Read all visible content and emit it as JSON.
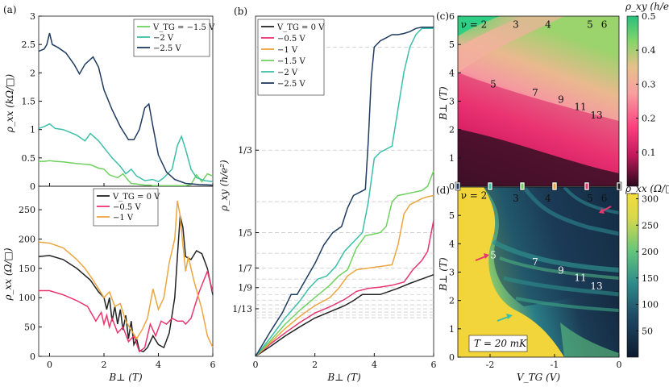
{
  "colors": {
    "vtg_m1_5": "#6fd160",
    "vtg_m2": "#3cbfa8",
    "vtg_m2_5": "#1f3b5f",
    "vtg_0": "#232323",
    "vtg_m0_5": "#e8366f",
    "vtg_m1": "#eba640"
  },
  "panels": {
    "a_label": "(a)",
    "b_label": "(b)",
    "c_label": "(c)",
    "d_label": "(d)",
    "a_top_ylabel": "ρ_xx (kΩ/□)",
    "a_bottom_ylabel": "ρ_xx (Ω/□)",
    "a_xlabel": "B⊥ (T)",
    "b_ylabel": "ρ_xy (h/e²)",
    "b_xlabel": "B⊥ (T)",
    "c_ylabel": "B⊥ (T)",
    "d_ylabel": "B⊥ (T)",
    "d_xlabel": "V_TG (V)",
    "c_colorbar_label": "ρ_xy (h/e²)",
    "d_colorbar_label": "ρ_xx (Ω/□)",
    "temperature": "T = 20 mK"
  },
  "chart_data": [
    {
      "id": "a_top",
      "type": "line",
      "xlabel": "B⊥ (T)",
      "ylabel": "ρ_xx (kΩ/□)",
      "xlim": [
        -0.4,
        6
      ],
      "ylim": [
        0,
        3
      ],
      "yticks": [
        0,
        0.5,
        1,
        1.5,
        2,
        2.5,
        3
      ],
      "legend": [
        "V_TG = −1.5 V",
        "−2 V",
        "−2.5 V"
      ],
      "series": [
        {
          "name": "V_TG = −1.5 V",
          "color": "#6fd160",
          "x": [
            -0.4,
            -0.2,
            0,
            0.2,
            0.5,
            1,
            1.5,
            1.8,
            2,
            2.2,
            2.5,
            2.7,
            2.9,
            3.0,
            3.2,
            3.5,
            3.7,
            3.8,
            4.0,
            4.5,
            5,
            5.2,
            5.4,
            5.6,
            5.8,
            6
          ],
          "y": [
            0.44,
            0.44,
            0.45,
            0.44,
            0.43,
            0.4,
            0.38,
            0.32,
            0.3,
            0.2,
            0.15,
            0.22,
            0.1,
            0.05,
            0.04,
            0.02,
            0.02,
            0.01,
            0.01,
            0.01,
            0.01,
            0.03,
            0.2,
            0.08,
            0.22,
            0.18
          ]
        },
        {
          "name": "−2 V",
          "color": "#3cbfa8",
          "x": [
            -0.4,
            -0.2,
            0,
            0.2,
            0.5,
            1,
            1.3,
            1.5,
            1.8,
            2,
            2.3,
            2.6,
            2.8,
            3.0,
            3.2,
            3.5,
            3.8,
            4.0,
            4.2,
            4.5,
            4.7,
            4.85,
            5,
            5.2,
            5.4,
            5.7,
            6
          ],
          "y": [
            1.02,
            1.05,
            1.1,
            1.02,
            1.0,
            0.9,
            0.8,
            0.93,
            0.8,
            0.68,
            0.5,
            0.35,
            0.22,
            0.3,
            0.18,
            0.1,
            0.12,
            0.08,
            0.15,
            0.3,
            0.72,
            0.88,
            0.65,
            0.3,
            0.15,
            0.1,
            0.08
          ]
        },
        {
          "name": "−2.5 V",
          "color": "#1f3b5f",
          "x": [
            -0.4,
            -0.2,
            -0.1,
            0,
            0.1,
            0.3,
            0.6,
            0.9,
            1.1,
            1.3,
            1.6,
            1.8,
            2,
            2.3,
            2.6,
            2.9,
            3.1,
            3.3,
            3.5,
            3.65,
            3.8,
            4.0,
            4.3,
            4.6,
            5,
            5.5,
            6
          ],
          "y": [
            2.38,
            2.42,
            2.5,
            2.7,
            2.5,
            2.45,
            2.35,
            2.15,
            1.98,
            2.15,
            2.28,
            2.1,
            1.7,
            1.35,
            1.05,
            0.82,
            0.82,
            1.0,
            1.38,
            1.45,
            1.05,
            0.55,
            0.25,
            0.12,
            0.05,
            0.03,
            0.02
          ]
        }
      ]
    },
    {
      "id": "a_bottom",
      "type": "line",
      "xlabel": "B⊥ (T)",
      "ylabel": "ρ_xx (Ω/□)",
      "xlim": [
        -0.4,
        6
      ],
      "ylim": [
        0,
        290
      ],
      "xticks": [
        0,
        2,
        4,
        6
      ],
      "yticks": [
        0,
        50,
        100,
        150,
        200,
        250
      ],
      "legend": [
        "V_TG = 0 V",
        "−0.5 V",
        "−1 V"
      ],
      "series": [
        {
          "name": "V_TG = 0 V",
          "color": "#232323",
          "x": [
            -0.4,
            0,
            0.5,
            1.0,
            1.5,
            1.8,
            2.0,
            2.1,
            2.2,
            2.3,
            2.4,
            2.5,
            2.6,
            2.7,
            2.8,
            2.9,
            3.0,
            3.1,
            3.2,
            3.3,
            3.45,
            3.6,
            3.8,
            4.0,
            4.2,
            4.4,
            4.6,
            4.7,
            4.8,
            4.9,
            5.0,
            5.2,
            5.4,
            5.6,
            5.8,
            6
          ],
          "y": [
            170,
            172,
            165,
            150,
            130,
            110,
            100,
            80,
            100,
            60,
            85,
            55,
            80,
            45,
            70,
            30,
            60,
            20,
            30,
            10,
            8,
            15,
            35,
            20,
            15,
            40,
            100,
            170,
            240,
            220,
            170,
            165,
            180,
            175,
            150,
            105
          ]
        },
        {
          "name": "−0.5 V",
          "color": "#e8366f",
          "x": [
            -0.4,
            0,
            0.5,
            1.0,
            1.4,
            1.7,
            1.9,
            2.0,
            2.1,
            2.2,
            2.3,
            2.5,
            2.7,
            2.9,
            3.1,
            3.3,
            3.5,
            3.7,
            3.9,
            4.1,
            4.3,
            4.5,
            4.7,
            4.9,
            5.0,
            5.2,
            5.5,
            5.8,
            6
          ],
          "y": [
            112,
            112,
            105,
            95,
            85,
            60,
            75,
            55,
            70,
            50,
            65,
            40,
            50,
            25,
            35,
            8,
            15,
            55,
            35,
            60,
            55,
            65,
            60,
            60,
            55,
            65,
            110,
            145,
            110
          ]
        },
        {
          "name": "−1 V",
          "color": "#eba640",
          "x": [
            -0.4,
            0,
            0.5,
            1.0,
            1.3,
            1.6,
            1.8,
            2.0,
            2.2,
            2.4,
            2.6,
            2.8,
            3.0,
            3.2,
            3.4,
            3.6,
            3.8,
            4.0,
            4.2,
            4.4,
            4.6,
            4.7,
            4.8,
            4.9,
            5.0,
            5.1,
            5.3,
            5.6,
            5.8,
            6
          ],
          "y": [
            195,
            193,
            185,
            165,
            150,
            130,
            115,
            100,
            110,
            85,
            90,
            60,
            45,
            30,
            45,
            65,
            115,
            80,
            100,
            160,
            200,
            265,
            240,
            190,
            145,
            170,
            130,
            80,
            35,
            15
          ]
        }
      ]
    },
    {
      "id": "b",
      "type": "line",
      "xlabel": "B⊥ (T)",
      "ylabel": "ρ_xy (h/e²)",
      "xlim": [
        0,
        6
      ],
      "ylim": [
        0,
        0.55
      ],
      "xticks": [
        0,
        2,
        4,
        6
      ],
      "yticks": [
        "1/3",
        "1/5",
        "1/7",
        "1/9",
        "1/13"
      ],
      "legend": [
        "V_TG = 0 V",
        "−0.5 V",
        "−1 V",
        "−1.5 V",
        "−2 V",
        "−2.5 V"
      ],
      "series": [
        {
          "name": "V_TG = 0 V",
          "color": "#232323",
          "x": [
            0,
            0.5,
            1,
            1.5,
            2,
            2.5,
            3,
            3.3,
            3.6,
            3.9,
            4.2,
            4.5,
            4.8,
            5.2,
            5.6,
            6
          ],
          "y": [
            0,
            0.016,
            0.033,
            0.048,
            0.062,
            0.072,
            0.082,
            0.09,
            0.1,
            0.1,
            0.1,
            0.105,
            0.11,
            0.118,
            0.125,
            0.132
          ]
        },
        {
          "name": "−0.5 V",
          "color": "#e8366f",
          "x": [
            0,
            0.5,
            1,
            1.5,
            2,
            2.5,
            3,
            3.4,
            3.8,
            4.2,
            4.6,
            5.0,
            5.3,
            5.6,
            5.8,
            6
          ],
          "y": [
            0,
            0.02,
            0.038,
            0.055,
            0.07,
            0.08,
            0.092,
            0.105,
            0.11,
            0.112,
            0.115,
            0.12,
            0.14,
            0.155,
            0.17,
            0.22
          ]
        },
        {
          "name": "−1 V",
          "color": "#eba640",
          "x": [
            0,
            0.5,
            1,
            1.5,
            2,
            2.5,
            2.8,
            3.1,
            3.4,
            3.7,
            4.0,
            4.3,
            4.6,
            4.8,
            5.0,
            5.2,
            5.4,
            5.6,
            5.8,
            6
          ],
          "y": [
            0,
            0.022,
            0.045,
            0.065,
            0.082,
            0.095,
            0.11,
            0.13,
            0.14,
            0.142,
            0.144,
            0.146,
            0.148,
            0.18,
            0.23,
            0.245,
            0.25,
            0.255,
            0.258,
            0.26
          ]
        },
        {
          "name": "−1.5 V",
          "color": "#6fd160",
          "x": [
            0,
            0.5,
            1,
            1.5,
            2,
            2.5,
            2.8,
            3.1,
            3.4,
            3.7,
            4.0,
            4.2,
            4.4,
            4.6,
            4.8,
            5.0,
            5.3,
            5.6,
            5.8,
            6
          ],
          "y": [
            0,
            0.025,
            0.052,
            0.075,
            0.095,
            0.115,
            0.13,
            0.14,
            0.175,
            0.195,
            0.198,
            0.2,
            0.21,
            0.25,
            0.26,
            0.262,
            0.265,
            0.268,
            0.275,
            0.3
          ]
        },
        {
          "name": "−2 V",
          "color": "#3cbfa8",
          "x": [
            0,
            0.5,
            1,
            1.5,
            1.8,
            2.1,
            2.4,
            2.7,
            3.0,
            3.3,
            3.6,
            3.8,
            4.0,
            4.2,
            4.4,
            4.6,
            4.8,
            5.0,
            5.2,
            5.4,
            5.6,
            5.8,
            6
          ],
          "y": [
            0,
            0.03,
            0.062,
            0.09,
            0.11,
            0.125,
            0.13,
            0.145,
            0.17,
            0.185,
            0.2,
            0.25,
            0.32,
            0.33,
            0.335,
            0.34,
            0.4,
            0.46,
            0.5,
            0.52,
            0.53,
            0.53,
            0.53
          ]
        },
        {
          "name": "−2.5 V",
          "color": "#1f3b5f",
          "x": [
            0,
            0.5,
            0.9,
            1.2,
            1.4,
            1.7,
            2.0,
            2.3,
            2.6,
            2.9,
            3.1,
            3.3,
            3.5,
            3.7,
            3.8,
            3.9,
            4.0,
            4.2,
            4.4,
            4.6,
            4.8,
            5.0,
            5.2,
            5.4,
            5.6,
            5.8,
            6
          ],
          "y": [
            0,
            0.04,
            0.07,
            0.1,
            0.1,
            0.125,
            0.15,
            0.18,
            0.2,
            0.21,
            0.24,
            0.26,
            0.265,
            0.27,
            0.35,
            0.45,
            0.5,
            0.51,
            0.515,
            0.52,
            0.52,
            0.522,
            0.525,
            0.53,
            0.532,
            0.532,
            0.532
          ]
        }
      ]
    },
    {
      "id": "c",
      "type": "heatmap",
      "xlabel": "",
      "ylabel": "B⊥ (T)",
      "xlim": [
        -2.5,
        0
      ],
      "ylim": [
        0,
        6
      ],
      "yticks": [
        0,
        1,
        2,
        3,
        4,
        5,
        6
      ],
      "colorbar": {
        "label": "ρ_xy (h/e²)",
        "range": [
          0,
          0.5
        ],
        "ticks": [
          0.1,
          0.2,
          0.3,
          0.4,
          0.5
        ]
      },
      "filling_factors": [
        {
          "text": "ν = 2",
          "v": -2.25,
          "b": 5.7
        },
        {
          "text": "3",
          "v": -1.6,
          "b": 5.7
        },
        {
          "text": "4",
          "v": -1.1,
          "b": 5.7
        },
        {
          "text": "5",
          "v": -0.45,
          "b": 5.7
        },
        {
          "text": "6",
          "v": -0.23,
          "b": 5.7
        },
        {
          "text": "5",
          "v": -1.95,
          "b": 3.6
        },
        {
          "text": "7",
          "v": -1.3,
          "b": 3.3
        },
        {
          "text": "9",
          "v": -0.9,
          "b": 3.05
        },
        {
          "text": "11",
          "v": -0.6,
          "b": 2.8
        },
        {
          "text": "13",
          "v": -0.35,
          "b": 2.5
        }
      ]
    },
    {
      "id": "d",
      "type": "heatmap",
      "xlabel": "V_TG (V)",
      "ylabel": "B⊥ (T)",
      "xlim": [
        -2.5,
        0
      ],
      "ylim": [
        0,
        6
      ],
      "xticks": [
        -2,
        -1,
        0
      ],
      "yticks": [
        0,
        1,
        2,
        3,
        4,
        5
      ],
      "colorbar": {
        "label": "ρ_xx (Ω/□)",
        "range": [
          0,
          310
        ],
        "ticks": [
          50,
          100,
          150,
          200,
          250,
          300
        ]
      },
      "filling_factors": [
        {
          "text": "ν = 2",
          "v": -2.25,
          "b": 5.7
        },
        {
          "text": "3",
          "v": -1.6,
          "b": 5.6
        },
        {
          "text": "4",
          "v": -1.1,
          "b": 5.6
        },
        {
          "text": "5",
          "v": -0.45,
          "b": 5.6
        },
        {
          "text": "6",
          "v": -0.23,
          "b": 5.6
        },
        {
          "text": "5",
          "v": -1.95,
          "b": 3.6
        },
        {
          "text": "7",
          "v": -1.3,
          "b": 3.35
        },
        {
          "text": "9",
          "v": -0.9,
          "b": 3.05
        },
        {
          "text": "11",
          "v": -0.6,
          "b": 2.8
        },
        {
          "text": "13",
          "v": -0.35,
          "b": 2.5
        }
      ],
      "gate_markers": [
        {
          "v": -2.5,
          "color": "#1f3b5f"
        },
        {
          "v": -2.0,
          "color": "#3cbfa8"
        },
        {
          "v": -1.5,
          "color": "#6fd160"
        },
        {
          "v": -1.0,
          "color": "#eba640"
        },
        {
          "v": -0.5,
          "color": "#e8366f"
        },
        {
          "v": 0.0,
          "color": "#232323"
        }
      ]
    }
  ]
}
